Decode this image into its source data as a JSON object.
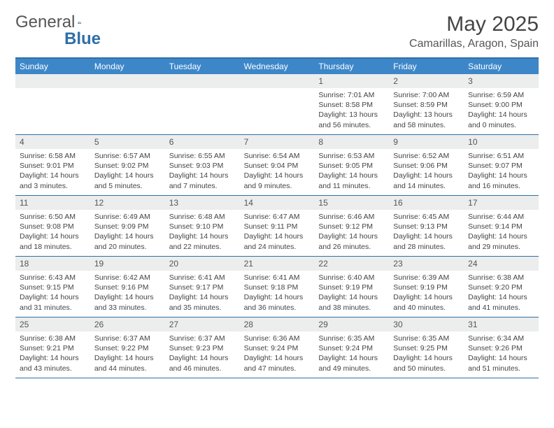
{
  "brand": {
    "part1": "General",
    "part2": "Blue"
  },
  "title": "May 2025",
  "location": "Camarillas, Aragon, Spain",
  "colors": {
    "header_bar": "#3d87c9",
    "border": "#2f6fa7",
    "daynum_bg": "#eceded",
    "text": "#444444"
  },
  "daynames": [
    "Sunday",
    "Monday",
    "Tuesday",
    "Wednesday",
    "Thursday",
    "Friday",
    "Saturday"
  ],
  "weeks": [
    [
      null,
      null,
      null,
      null,
      {
        "n": "1",
        "sr": "7:01 AM",
        "ss": "8:58 PM",
        "dl": "13 hours and 56 minutes."
      },
      {
        "n": "2",
        "sr": "7:00 AM",
        "ss": "8:59 PM",
        "dl": "13 hours and 58 minutes."
      },
      {
        "n": "3",
        "sr": "6:59 AM",
        "ss": "9:00 PM",
        "dl": "14 hours and 0 minutes."
      }
    ],
    [
      {
        "n": "4",
        "sr": "6:58 AM",
        "ss": "9:01 PM",
        "dl": "14 hours and 3 minutes."
      },
      {
        "n": "5",
        "sr": "6:57 AM",
        "ss": "9:02 PM",
        "dl": "14 hours and 5 minutes."
      },
      {
        "n": "6",
        "sr": "6:55 AM",
        "ss": "9:03 PM",
        "dl": "14 hours and 7 minutes."
      },
      {
        "n": "7",
        "sr": "6:54 AM",
        "ss": "9:04 PM",
        "dl": "14 hours and 9 minutes."
      },
      {
        "n": "8",
        "sr": "6:53 AM",
        "ss": "9:05 PM",
        "dl": "14 hours and 11 minutes."
      },
      {
        "n": "9",
        "sr": "6:52 AM",
        "ss": "9:06 PM",
        "dl": "14 hours and 14 minutes."
      },
      {
        "n": "10",
        "sr": "6:51 AM",
        "ss": "9:07 PM",
        "dl": "14 hours and 16 minutes."
      }
    ],
    [
      {
        "n": "11",
        "sr": "6:50 AM",
        "ss": "9:08 PM",
        "dl": "14 hours and 18 minutes."
      },
      {
        "n": "12",
        "sr": "6:49 AM",
        "ss": "9:09 PM",
        "dl": "14 hours and 20 minutes."
      },
      {
        "n": "13",
        "sr": "6:48 AM",
        "ss": "9:10 PM",
        "dl": "14 hours and 22 minutes."
      },
      {
        "n": "14",
        "sr": "6:47 AM",
        "ss": "9:11 PM",
        "dl": "14 hours and 24 minutes."
      },
      {
        "n": "15",
        "sr": "6:46 AM",
        "ss": "9:12 PM",
        "dl": "14 hours and 26 minutes."
      },
      {
        "n": "16",
        "sr": "6:45 AM",
        "ss": "9:13 PM",
        "dl": "14 hours and 28 minutes."
      },
      {
        "n": "17",
        "sr": "6:44 AM",
        "ss": "9:14 PM",
        "dl": "14 hours and 29 minutes."
      }
    ],
    [
      {
        "n": "18",
        "sr": "6:43 AM",
        "ss": "9:15 PM",
        "dl": "14 hours and 31 minutes."
      },
      {
        "n": "19",
        "sr": "6:42 AM",
        "ss": "9:16 PM",
        "dl": "14 hours and 33 minutes."
      },
      {
        "n": "20",
        "sr": "6:41 AM",
        "ss": "9:17 PM",
        "dl": "14 hours and 35 minutes."
      },
      {
        "n": "21",
        "sr": "6:41 AM",
        "ss": "9:18 PM",
        "dl": "14 hours and 36 minutes."
      },
      {
        "n": "22",
        "sr": "6:40 AM",
        "ss": "9:19 PM",
        "dl": "14 hours and 38 minutes."
      },
      {
        "n": "23",
        "sr": "6:39 AM",
        "ss": "9:19 PM",
        "dl": "14 hours and 40 minutes."
      },
      {
        "n": "24",
        "sr": "6:38 AM",
        "ss": "9:20 PM",
        "dl": "14 hours and 41 minutes."
      }
    ],
    [
      {
        "n": "25",
        "sr": "6:38 AM",
        "ss": "9:21 PM",
        "dl": "14 hours and 43 minutes."
      },
      {
        "n": "26",
        "sr": "6:37 AM",
        "ss": "9:22 PM",
        "dl": "14 hours and 44 minutes."
      },
      {
        "n": "27",
        "sr": "6:37 AM",
        "ss": "9:23 PM",
        "dl": "14 hours and 46 minutes."
      },
      {
        "n": "28",
        "sr": "6:36 AM",
        "ss": "9:24 PM",
        "dl": "14 hours and 47 minutes."
      },
      {
        "n": "29",
        "sr": "6:35 AM",
        "ss": "9:24 PM",
        "dl": "14 hours and 49 minutes."
      },
      {
        "n": "30",
        "sr": "6:35 AM",
        "ss": "9:25 PM",
        "dl": "14 hours and 50 minutes."
      },
      {
        "n": "31",
        "sr": "6:34 AM",
        "ss": "9:26 PM",
        "dl": "14 hours and 51 minutes."
      }
    ]
  ],
  "labels": {
    "sunrise": "Sunrise: ",
    "sunset": "Sunset: ",
    "daylight": "Daylight: "
  }
}
